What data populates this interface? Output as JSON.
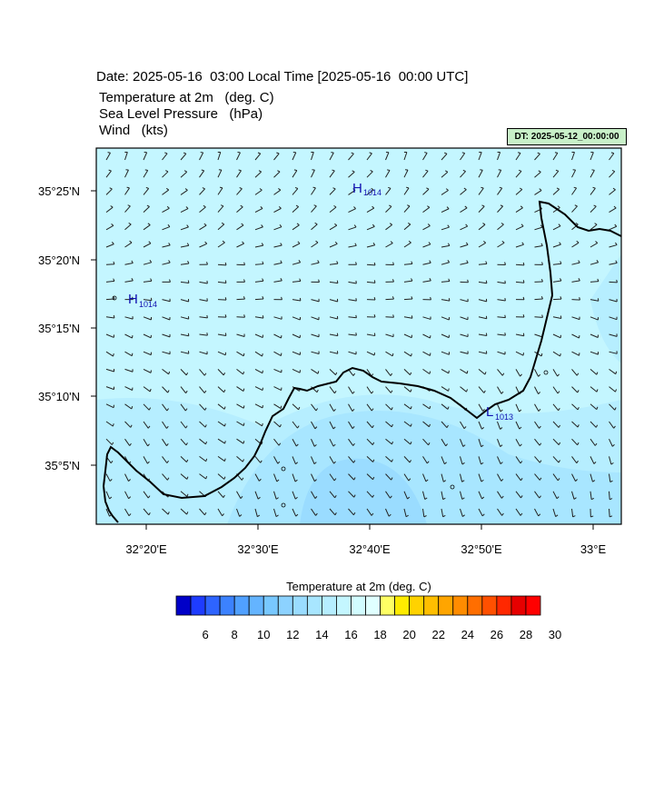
{
  "header": {
    "title": "Date: 2025-05-16  03:00 Local Time [2025-05-16  00:00 UTC]",
    "variables": [
      "Temperature at 2m   (deg. C)",
      "Sea Level Pressure   (hPa)",
      "Wind   (kts)"
    ],
    "dt_badge": "DT: 2025-05-12_00:00:00"
  },
  "map": {
    "lat_labels": [
      "35°25'N",
      "35°20'N",
      "35°15'N",
      "35°10'N",
      "35°5'N"
    ],
    "lon_labels": [
      "32°20'E",
      "32°30'E",
      "32°40'E",
      "32°50'E",
      "33°E"
    ],
    "pressure_centers": [
      {
        "kind": "H",
        "value": "1014"
      },
      {
        "kind": "H",
        "value": "1014"
      },
      {
        "kind": "L",
        "value": "1013"
      }
    ]
  },
  "colorbar": {
    "title": "Temperature at 2m  (deg. C)",
    "colors": [
      "#0000c8",
      "#1e3cff",
      "#2e64ff",
      "#3c82ff",
      "#50a0ff",
      "#64b4ff",
      "#78c8ff",
      "#8cd2ff",
      "#9adcff",
      "#a8e6ff",
      "#b6eeff",
      "#c4f6ff",
      "#d2fcff",
      "#e0ffff",
      "#ffff64",
      "#ffeb00",
      "#ffd200",
      "#ffbe00",
      "#ffa500",
      "#ff8c00",
      "#ff6e00",
      "#ff5000",
      "#ff2800",
      "#e60000",
      "#ff0000"
    ],
    "tick_labels": [
      "6",
      "8",
      "10",
      "12",
      "14",
      "16",
      "18",
      "20",
      "22",
      "24",
      "26",
      "28",
      "30"
    ]
  }
}
